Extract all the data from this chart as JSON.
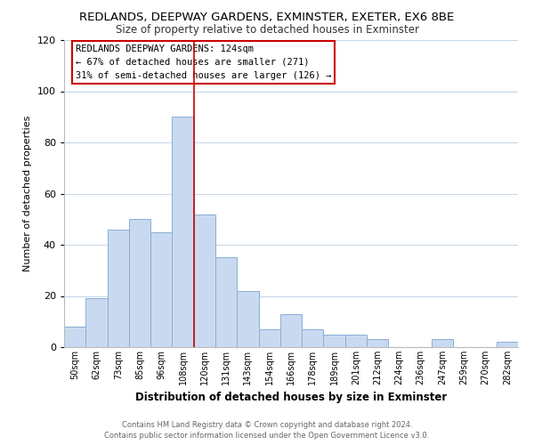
{
  "title": "REDLANDS, DEEPWAY GARDENS, EXMINSTER, EXETER, EX6 8BE",
  "subtitle": "Size of property relative to detached houses in Exminster",
  "xlabel": "Distribution of detached houses by size in Exminster",
  "ylabel": "Number of detached properties",
  "bar_labels": [
    "50sqm",
    "62sqm",
    "73sqm",
    "85sqm",
    "96sqm",
    "108sqm",
    "120sqm",
    "131sqm",
    "143sqm",
    "154sqm",
    "166sqm",
    "178sqm",
    "189sqm",
    "201sqm",
    "212sqm",
    "224sqm",
    "236sqm",
    "247sqm",
    "259sqm",
    "270sqm",
    "282sqm"
  ],
  "bar_values": [
    8,
    19,
    46,
    50,
    45,
    90,
    52,
    35,
    22,
    7,
    13,
    7,
    5,
    5,
    3,
    0,
    0,
    3,
    0,
    0,
    2
  ],
  "bar_color": "#c9daf0",
  "bar_edge_color": "#89aed4",
  "vline_index": 6,
  "vline_color": "#cc0000",
  "ylim": [
    0,
    120
  ],
  "yticks": [
    0,
    20,
    40,
    60,
    80,
    100,
    120
  ],
  "annotation_title": "REDLANDS DEEPWAY GARDENS: 124sqm",
  "annotation_line1": "← 67% of detached houses are smaller (271)",
  "annotation_line2": "31% of semi-detached houses are larger (126) →",
  "footer_line1": "Contains HM Land Registry data © Crown copyright and database right 2024.",
  "footer_line2": "Contains public sector information licensed under the Open Government Licence v3.0.",
  "background_color": "#ffffff",
  "grid_color": "#c8d8e8"
}
